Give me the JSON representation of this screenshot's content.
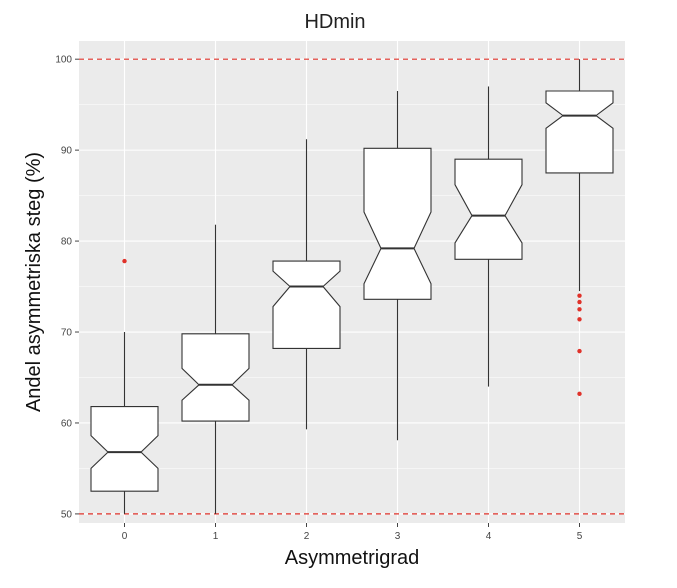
{
  "chart_data": {
    "type": "boxplot",
    "title": "HDmin",
    "xlabel": "Asymmetrigrad",
    "ylabel": "Andel asymmetriska steg (%)",
    "ylim": [
      49,
      102
    ],
    "yticks": [
      50,
      60,
      70,
      80,
      90,
      100
    ],
    "grid": true,
    "notched": true,
    "reference_lines": [
      50,
      100
    ],
    "categories": [
      "0",
      "1",
      "2",
      "3",
      "4",
      "5"
    ],
    "boxes": [
      {
        "category": "0",
        "whisker_low": 50.0,
        "q1": 52.5,
        "median": 56.8,
        "q3": 61.8,
        "whisker_high": 70.0,
        "notch_low": 55.0,
        "notch_high": 58.6,
        "outliers": [
          77.8
        ]
      },
      {
        "category": "1",
        "whisker_low": 50.0,
        "q1": 60.2,
        "median": 64.2,
        "q3": 69.8,
        "whisker_high": 81.8,
        "notch_low": 62.5,
        "notch_high": 66.0,
        "outliers": []
      },
      {
        "category": "2",
        "whisker_low": 59.3,
        "q1": 68.2,
        "median": 75.0,
        "q3": 77.8,
        "whisker_high": 91.2,
        "notch_low": 72.8,
        "notch_high": 76.7,
        "outliers": []
      },
      {
        "category": "3",
        "whisker_low": 58.1,
        "q1": 73.6,
        "median": 79.2,
        "q3": 90.2,
        "whisker_high": 96.5,
        "notch_low": 75.3,
        "notch_high": 83.2,
        "outliers": []
      },
      {
        "category": "4",
        "whisker_low": 64.0,
        "q1": 78.0,
        "median": 82.8,
        "q3": 89.0,
        "whisker_high": 97.0,
        "notch_low": 79.8,
        "notch_high": 86.2,
        "outliers": []
      },
      {
        "category": "5",
        "whisker_low": 74.5,
        "q1": 87.5,
        "median": 93.8,
        "q3": 96.5,
        "whisker_high": 100.0,
        "notch_low": 92.4,
        "notch_high": 95.2,
        "outliers": [
          74.0,
          73.3,
          72.5,
          71.4,
          67.9,
          63.2
        ]
      }
    ]
  },
  "colors": {
    "panel": "#ebebeb",
    "grid": "#ffffff",
    "box_fill": "#ffffff",
    "box_stroke": "#333333",
    "outlier": "#e0322a",
    "reference_line": "#e0322a"
  }
}
